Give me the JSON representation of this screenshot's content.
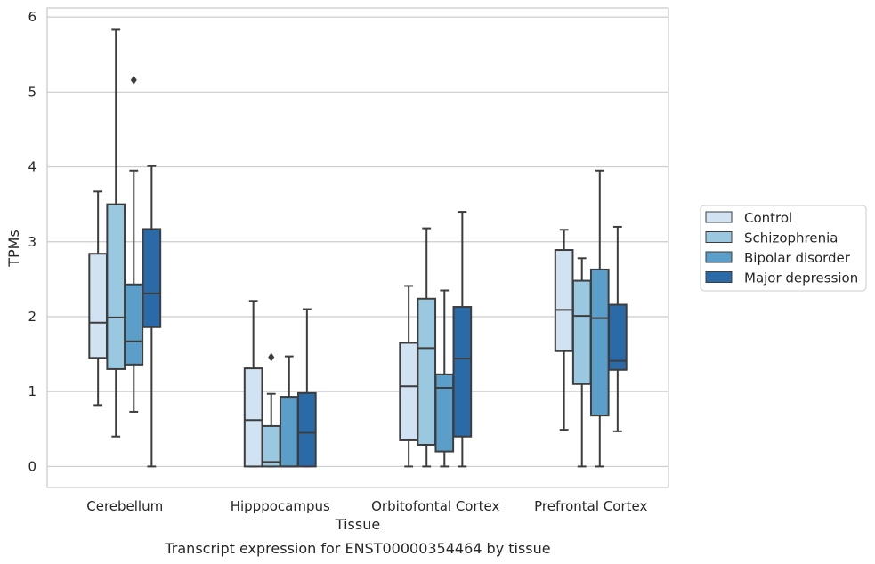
{
  "chart_data": {
    "type": "box",
    "xlabel": "Tissue",
    "ylabel": "TPMs",
    "caption": "Transcript expression for ENST00000354464 by tissue",
    "ylim": [
      -0.28,
      6.12
    ],
    "yticks": [
      "0",
      "1",
      "2",
      "3",
      "4",
      "5",
      "6"
    ],
    "grid": true,
    "legend_position": "right",
    "categories": [
      "Cerebellum",
      "Hipppocampus",
      "Orbitofontal Cortex",
      "Prefrontal Cortex"
    ],
    "series": [
      {
        "name": "Control",
        "color": "#d1e2f2",
        "boxes": [
          {
            "whislo": 0.82,
            "q1": 1.45,
            "med": 1.92,
            "q3": 2.84,
            "whishi": 3.67,
            "fliers": []
          },
          {
            "whislo": 0.0,
            "q1": 0.0,
            "med": 0.62,
            "q3": 1.31,
            "whishi": 2.21,
            "fliers": []
          },
          {
            "whislo": 0.0,
            "q1": 0.35,
            "med": 1.07,
            "q3": 1.65,
            "whishi": 2.41,
            "fliers": []
          },
          {
            "whislo": 0.49,
            "q1": 1.54,
            "med": 2.09,
            "q3": 2.89,
            "whishi": 3.16,
            "fliers": []
          }
        ]
      },
      {
        "name": "Schizophrenia",
        "color": "#9ac8e0",
        "boxes": [
          {
            "whislo": 0.4,
            "q1": 1.3,
            "med": 1.99,
            "q3": 3.5,
            "whishi": 5.83,
            "fliers": []
          },
          {
            "whislo": 0.0,
            "q1": 0.0,
            "med": 0.06,
            "q3": 0.54,
            "whishi": 0.97,
            "fliers": [
              1.46
            ]
          },
          {
            "whislo": 0.0,
            "q1": 0.29,
            "med": 1.58,
            "q3": 2.24,
            "whishi": 3.18,
            "fliers": []
          },
          {
            "whislo": 0.0,
            "q1": 1.1,
            "med": 2.01,
            "q3": 2.48,
            "whishi": 2.78,
            "fliers": []
          }
        ]
      },
      {
        "name": "Bipolar disorder",
        "color": "#5a9ec9",
        "boxes": [
          {
            "whislo": 0.73,
            "q1": 1.36,
            "med": 1.67,
            "q3": 2.43,
            "whishi": 3.95,
            "fliers": [
              5.16
            ]
          },
          {
            "whislo": 0.0,
            "q1": 0.0,
            "med": 0.0,
            "q3": 0.93,
            "whishi": 1.47,
            "fliers": []
          },
          {
            "whislo": 0.0,
            "q1": 0.2,
            "med": 1.05,
            "q3": 1.23,
            "whishi": 2.35,
            "fliers": []
          },
          {
            "whislo": 0.0,
            "q1": 0.68,
            "med": 1.98,
            "q3": 2.63,
            "whishi": 3.95,
            "fliers": []
          }
        ]
      },
      {
        "name": "Major depression",
        "color": "#2b6aa8",
        "boxes": [
          {
            "whislo": 0.0,
            "q1": 1.86,
            "med": 2.31,
            "q3": 3.17,
            "whishi": 4.01,
            "fliers": []
          },
          {
            "whislo": 0.0,
            "q1": 0.0,
            "med": 0.45,
            "q3": 0.98,
            "whishi": 2.1,
            "fliers": []
          },
          {
            "whislo": 0.0,
            "q1": 0.4,
            "med": 1.44,
            "q3": 2.13,
            "whishi": 3.4,
            "fliers": []
          },
          {
            "whislo": 0.47,
            "q1": 1.29,
            "med": 1.41,
            "q3": 2.16,
            "whishi": 3.2,
            "fliers": []
          }
        ]
      }
    ]
  }
}
